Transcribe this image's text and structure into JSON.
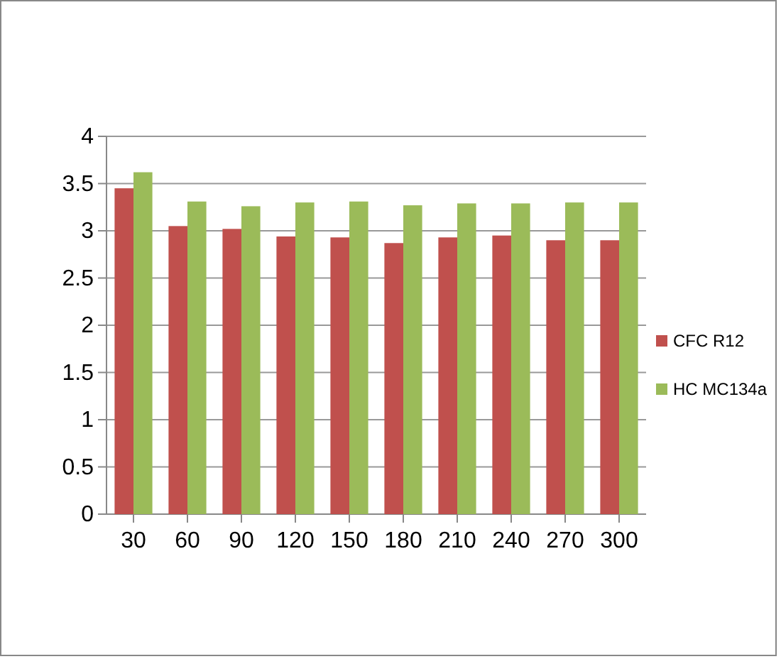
{
  "chart_data": {
    "type": "bar",
    "categories": [
      "30",
      "60",
      "90",
      "120",
      "150",
      "180",
      "210",
      "240",
      "270",
      "300"
    ],
    "series": [
      {
        "name": "CFC R12",
        "color": "#c0504d",
        "values": [
          3.45,
          3.05,
          3.02,
          2.94,
          2.93,
          2.87,
          2.93,
          2.95,
          2.9,
          2.9
        ]
      },
      {
        "name": "HC MC134a",
        "color": "#9bbb59",
        "values": [
          3.62,
          3.31,
          3.26,
          3.3,
          3.31,
          3.27,
          3.29,
          3.29,
          3.3,
          3.3
        ]
      }
    ],
    "ylim": [
      0,
      4
    ],
    "yticks": [
      0,
      0.5,
      1,
      1.5,
      2,
      2.5,
      3,
      3.5,
      4
    ],
    "grid": "y",
    "legend": "right"
  }
}
